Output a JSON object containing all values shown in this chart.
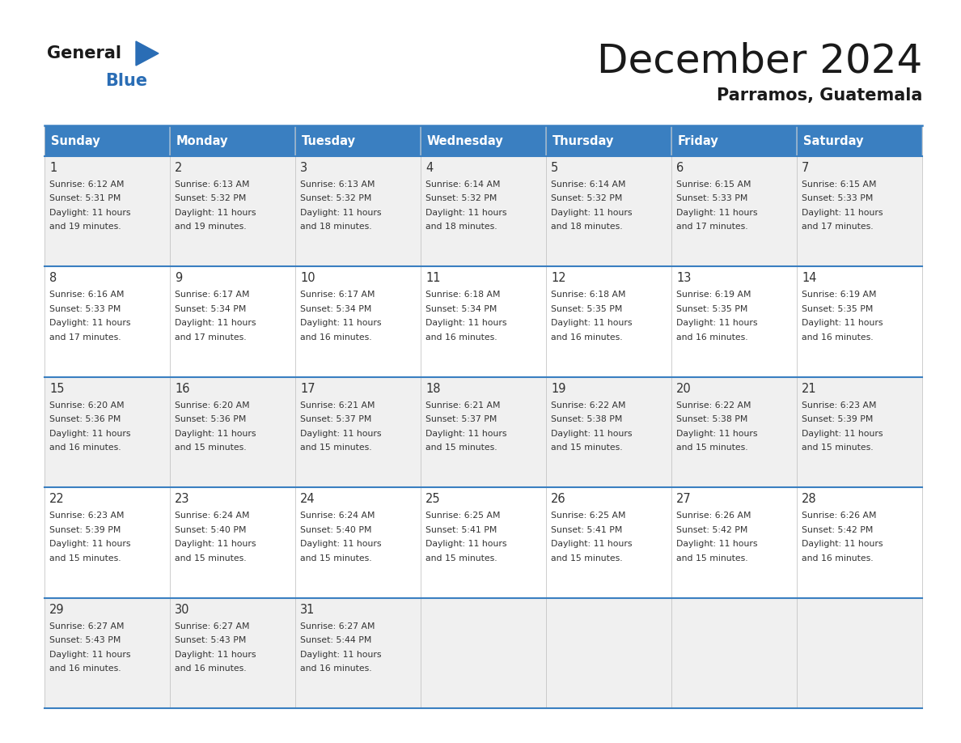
{
  "title": "December 2024",
  "subtitle": "Parramos, Guatemala",
  "days_of_week": [
    "Sunday",
    "Monday",
    "Tuesday",
    "Wednesday",
    "Thursday",
    "Friday",
    "Saturday"
  ],
  "header_bg": "#3a7fc1",
  "header_text": "#ffffff",
  "row_bg_odd": "#f0f0f0",
  "row_bg_even": "#ffffff",
  "border_color": "#3a7fc1",
  "day_number_color": "#333333",
  "cell_text_color": "#333333",
  "title_color": "#1a1a1a",
  "subtitle_color": "#1a1a1a",
  "logo_general_color": "#1a1a1a",
  "logo_blue_color": "#2a6db5",
  "calendar_data": [
    [
      {
        "day": 1,
        "sunrise": "6:12 AM",
        "sunset": "5:31 PM",
        "daylight_hours": 11,
        "daylight_minutes": 19
      },
      {
        "day": 2,
        "sunrise": "6:13 AM",
        "sunset": "5:32 PM",
        "daylight_hours": 11,
        "daylight_minutes": 19
      },
      {
        "day": 3,
        "sunrise": "6:13 AM",
        "sunset": "5:32 PM",
        "daylight_hours": 11,
        "daylight_minutes": 18
      },
      {
        "day": 4,
        "sunrise": "6:14 AM",
        "sunset": "5:32 PM",
        "daylight_hours": 11,
        "daylight_minutes": 18
      },
      {
        "day": 5,
        "sunrise": "6:14 AM",
        "sunset": "5:32 PM",
        "daylight_hours": 11,
        "daylight_minutes": 18
      },
      {
        "day": 6,
        "sunrise": "6:15 AM",
        "sunset": "5:33 PM",
        "daylight_hours": 11,
        "daylight_minutes": 17
      },
      {
        "day": 7,
        "sunrise": "6:15 AM",
        "sunset": "5:33 PM",
        "daylight_hours": 11,
        "daylight_minutes": 17
      }
    ],
    [
      {
        "day": 8,
        "sunrise": "6:16 AM",
        "sunset": "5:33 PM",
        "daylight_hours": 11,
        "daylight_minutes": 17
      },
      {
        "day": 9,
        "sunrise": "6:17 AM",
        "sunset": "5:34 PM",
        "daylight_hours": 11,
        "daylight_minutes": 17
      },
      {
        "day": 10,
        "sunrise": "6:17 AM",
        "sunset": "5:34 PM",
        "daylight_hours": 11,
        "daylight_minutes": 16
      },
      {
        "day": 11,
        "sunrise": "6:18 AM",
        "sunset": "5:34 PM",
        "daylight_hours": 11,
        "daylight_minutes": 16
      },
      {
        "day": 12,
        "sunrise": "6:18 AM",
        "sunset": "5:35 PM",
        "daylight_hours": 11,
        "daylight_minutes": 16
      },
      {
        "day": 13,
        "sunrise": "6:19 AM",
        "sunset": "5:35 PM",
        "daylight_hours": 11,
        "daylight_minutes": 16
      },
      {
        "day": 14,
        "sunrise": "6:19 AM",
        "sunset": "5:35 PM",
        "daylight_hours": 11,
        "daylight_minutes": 16
      }
    ],
    [
      {
        "day": 15,
        "sunrise": "6:20 AM",
        "sunset": "5:36 PM",
        "daylight_hours": 11,
        "daylight_minutes": 16
      },
      {
        "day": 16,
        "sunrise": "6:20 AM",
        "sunset": "5:36 PM",
        "daylight_hours": 11,
        "daylight_minutes": 15
      },
      {
        "day": 17,
        "sunrise": "6:21 AM",
        "sunset": "5:37 PM",
        "daylight_hours": 11,
        "daylight_minutes": 15
      },
      {
        "day": 18,
        "sunrise": "6:21 AM",
        "sunset": "5:37 PM",
        "daylight_hours": 11,
        "daylight_minutes": 15
      },
      {
        "day": 19,
        "sunrise": "6:22 AM",
        "sunset": "5:38 PM",
        "daylight_hours": 11,
        "daylight_minutes": 15
      },
      {
        "day": 20,
        "sunrise": "6:22 AM",
        "sunset": "5:38 PM",
        "daylight_hours": 11,
        "daylight_minutes": 15
      },
      {
        "day": 21,
        "sunrise": "6:23 AM",
        "sunset": "5:39 PM",
        "daylight_hours": 11,
        "daylight_minutes": 15
      }
    ],
    [
      {
        "day": 22,
        "sunrise": "6:23 AM",
        "sunset": "5:39 PM",
        "daylight_hours": 11,
        "daylight_minutes": 15
      },
      {
        "day": 23,
        "sunrise": "6:24 AM",
        "sunset": "5:40 PM",
        "daylight_hours": 11,
        "daylight_minutes": 15
      },
      {
        "day": 24,
        "sunrise": "6:24 AM",
        "sunset": "5:40 PM",
        "daylight_hours": 11,
        "daylight_minutes": 15
      },
      {
        "day": 25,
        "sunrise": "6:25 AM",
        "sunset": "5:41 PM",
        "daylight_hours": 11,
        "daylight_minutes": 15
      },
      {
        "day": 26,
        "sunrise": "6:25 AM",
        "sunset": "5:41 PM",
        "daylight_hours": 11,
        "daylight_minutes": 15
      },
      {
        "day": 27,
        "sunrise": "6:26 AM",
        "sunset": "5:42 PM",
        "daylight_hours": 11,
        "daylight_minutes": 15
      },
      {
        "day": 28,
        "sunrise": "6:26 AM",
        "sunset": "5:42 PM",
        "daylight_hours": 11,
        "daylight_minutes": 16
      }
    ],
    [
      {
        "day": 29,
        "sunrise": "6:27 AM",
        "sunset": "5:43 PM",
        "daylight_hours": 11,
        "daylight_minutes": 16
      },
      {
        "day": 30,
        "sunrise": "6:27 AM",
        "sunset": "5:43 PM",
        "daylight_hours": 11,
        "daylight_minutes": 16
      },
      {
        "day": 31,
        "sunrise": "6:27 AM",
        "sunset": "5:44 PM",
        "daylight_hours": 11,
        "daylight_minutes": 16
      },
      null,
      null,
      null,
      null
    ]
  ]
}
